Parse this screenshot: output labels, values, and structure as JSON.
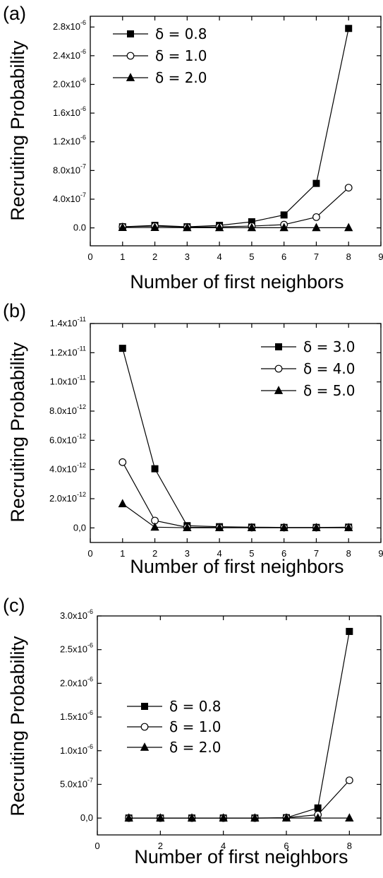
{
  "chart_data": [
    {
      "type": "line",
      "panel_label": "(a)",
      "xlabel": "Number of first neighbors",
      "ylabel": "Recruiting Probability",
      "xlim": [
        0,
        9
      ],
      "ylim": [
        -2.5e-07,
        2.95e-06
      ],
      "xticks": [
        0,
        1,
        2,
        3,
        4,
        5,
        6,
        7,
        8,
        9
      ],
      "xtick_labels": [
        "0",
        "1",
        "2",
        "3",
        "4",
        "5",
        "6",
        "7",
        "8",
        "9"
      ],
      "yticks": [
        0,
        4e-07,
        8e-07,
        1.2e-06,
        1.6e-06,
        2e-06,
        2.4e-06,
        2.8e-06
      ],
      "ytick_labels": [
        {
          "m": "0.0",
          "e": ""
        },
        {
          "m": "4.0x10",
          "e": "-7"
        },
        {
          "m": "8.0x10",
          "e": "-7"
        },
        {
          "m": "1.2x10",
          "e": "-6"
        },
        {
          "m": "1.6x10",
          "e": "-6"
        },
        {
          "m": "2.0x10",
          "e": "-6"
        },
        {
          "m": "2.4x10",
          "e": "-6"
        },
        {
          "m": "2.8x10",
          "e": "-6"
        }
      ],
      "legend_position": "top-left",
      "series": [
        {
          "name": "δ = 0.8",
          "marker": "square",
          "x": [
            1,
            2,
            3,
            4,
            5,
            6,
            7,
            8
          ],
          "y": [
            1.5e-08,
            3.5e-08,
            1.5e-08,
            3.5e-08,
            8.5e-08,
            1.8e-07,
            6.2e-07,
            2.78e-06
          ]
        },
        {
          "name": "δ = 1.0",
          "marker": "circle",
          "x": [
            1,
            2,
            3,
            4,
            5,
            6,
            7,
            8
          ],
          "y": [
            1.5e-08,
            2.5e-08,
            1e-08,
            1.5e-08,
            2.5e-08,
            4.5e-08,
            1.5e-07,
            5.6e-07
          ]
        },
        {
          "name": "δ = 2.0",
          "marker": "triangle",
          "x": [
            1,
            2,
            3,
            4,
            5,
            6,
            7,
            8
          ],
          "y": [
            5e-09,
            5e-09,
            2e-09,
            2e-09,
            2e-09,
            2e-09,
            2e-09,
            2e-09
          ]
        }
      ]
    },
    {
      "type": "line",
      "panel_label": "(b)",
      "xlabel": "Number of first neighbors",
      "ylabel": "Recruiting Probability",
      "xlim": [
        0,
        9
      ],
      "ylim": [
        -1e-12,
        1.4e-11
      ],
      "xticks": [
        0,
        1,
        2,
        3,
        4,
        5,
        6,
        7,
        8,
        9
      ],
      "xtick_labels": [
        "0",
        "1",
        "2",
        "3",
        "4",
        "5",
        "6",
        "7",
        "8",
        "9"
      ],
      "yticks": [
        0,
        2e-12,
        4e-12,
        6e-12,
        8e-12,
        1e-11,
        1.2e-11,
        1.4e-11
      ],
      "ytick_labels": [
        {
          "m": "0,0",
          "e": ""
        },
        {
          "m": "2.0x10",
          "e": "-12"
        },
        {
          "m": "4.0x10",
          "e": "-12"
        },
        {
          "m": "6.0x10",
          "e": "-12"
        },
        {
          "m": "8.0x10",
          "e": "-12"
        },
        {
          "m": "1.0x10",
          "e": "-11"
        },
        {
          "m": "1.2x10",
          "e": "-11"
        },
        {
          "m": "1.4x10",
          "e": "-11"
        }
      ],
      "legend_position": "top-right",
      "series": [
        {
          "name": "δ = 3.0",
          "marker": "square",
          "x": [
            1,
            2,
            3,
            4,
            5,
            6,
            7,
            8
          ],
          "y": [
            1.23e-11,
            4.05e-12,
            1.5e-13,
            8e-14,
            5e-14,
            3e-14,
            3e-14,
            5e-14
          ]
        },
        {
          "name": "δ = 4.0",
          "marker": "circle",
          "x": [
            1,
            2,
            3,
            4,
            5,
            6,
            7,
            8
          ],
          "y": [
            4.5e-12,
            5e-13,
            4e-14,
            3e-14,
            2e-14,
            2e-14,
            2e-14,
            3e-14
          ]
        },
        {
          "name": "δ = 5.0",
          "marker": "triangle",
          "x": [
            1,
            2,
            3,
            4,
            5,
            6,
            7,
            8
          ],
          "y": [
            1.65e-12,
            5e-14,
            1e-14,
            1e-14,
            1e-14,
            1e-14,
            1e-14,
            1e-14
          ]
        }
      ]
    },
    {
      "type": "line",
      "panel_label": "(c)",
      "xlabel": "Number of first neighbors",
      "ylabel": "Recruiting Probability",
      "xlim": [
        0,
        9
      ],
      "ylim": [
        -2.5e-07,
        3e-06
      ],
      "xticks": [
        0,
        2,
        4,
        6,
        8
      ],
      "xtick_labels": [
        "0",
        "2",
        "4",
        "6",
        "8"
      ],
      "yticks": [
        0,
        5e-07,
        1e-06,
        1.5e-06,
        2e-06,
        2.5e-06,
        3e-06
      ],
      "ytick_labels": [
        {
          "m": "0,0",
          "e": ""
        },
        {
          "m": "5.0x10",
          "e": "-7"
        },
        {
          "m": "1.0x10",
          "e": "-6"
        },
        {
          "m": "1.5x10",
          "e": "-6"
        },
        {
          "m": "2.0x10",
          "e": "-6"
        },
        {
          "m": "2.5x10",
          "e": "-6"
        },
        {
          "m": "3.0x10",
          "e": "-6"
        }
      ],
      "legend_position": "middle-left",
      "series": [
        {
          "name": "δ = 0.8",
          "marker": "square",
          "x": [
            1,
            2,
            3,
            4,
            5,
            6,
            7,
            8
          ],
          "y": [
            0,
            0,
            0,
            0,
            0,
            5e-09,
            1.5e-07,
            2.77e-06
          ]
        },
        {
          "name": "δ = 1.0",
          "marker": "circle",
          "x": [
            1,
            2,
            3,
            4,
            5,
            6,
            7,
            8
          ],
          "y": [
            0,
            0,
            0,
            0,
            0,
            5e-09,
            5e-08,
            5.6e-07
          ]
        },
        {
          "name": "δ = 2.0",
          "marker": "triangle",
          "x": [
            1,
            2,
            3,
            4,
            5,
            6,
            7,
            8
          ],
          "y": [
            0,
            0,
            0,
            0,
            0,
            0,
            0,
            0
          ]
        }
      ]
    }
  ]
}
